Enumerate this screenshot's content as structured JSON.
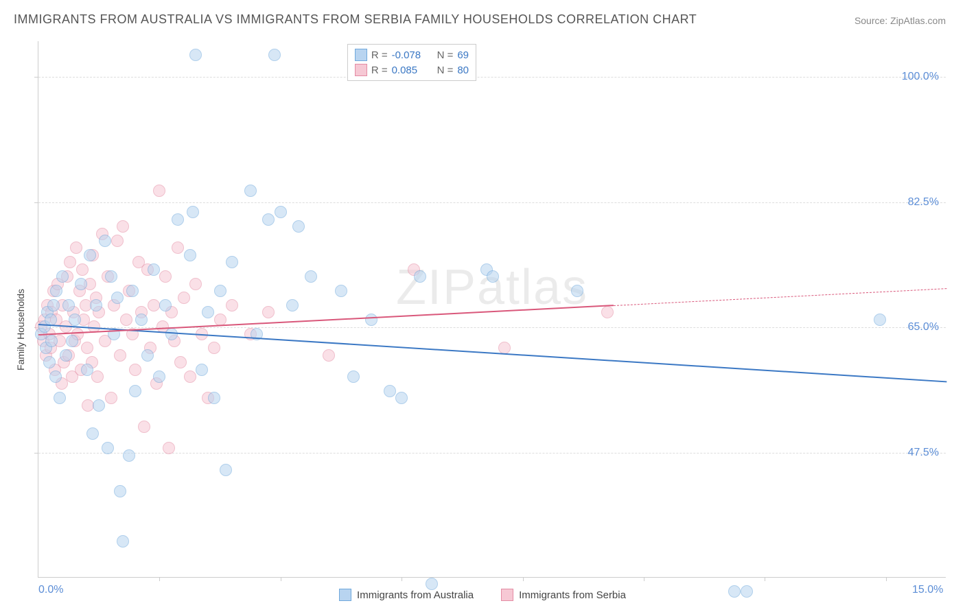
{
  "title": "IMMIGRANTS FROM AUSTRALIA VS IMMIGRANTS FROM SERBIA FAMILY HOUSEHOLDS CORRELATION CHART",
  "source": "Source: ZipAtlas.com",
  "watermark": "ZIPatlas",
  "ylabel": "Family Households",
  "chart": {
    "type": "scatter",
    "xlim": [
      0,
      15
    ],
    "ylim": [
      30,
      105
    ],
    "x_ticks": [
      0,
      15
    ],
    "x_tick_labels": [
      "0.0%",
      "15.0%"
    ],
    "x_minor_ticks": [
      2,
      4,
      6,
      8,
      10,
      12,
      14
    ],
    "y_ticks": [
      47.5,
      65.0,
      82.5,
      100.0
    ],
    "y_tick_labels": [
      "47.5%",
      "65.0%",
      "82.5%",
      "100.0%"
    ],
    "background_color": "#ffffff",
    "grid_color": "#dddddd",
    "axis_color": "#cccccc",
    "tick_label_color": "#5b8dd6",
    "title_color": "#555555",
    "marker_radius": 9,
    "marker_opacity": 0.55,
    "marker_border_width": 1.2
  },
  "series": [
    {
      "name": "Immigrants from Australia",
      "fill": "#b8d4f0",
      "stroke": "#6fa8dc",
      "line_color": "#3b78c4",
      "R": "-0.078",
      "N": "69",
      "trend": {
        "x1": 0.0,
        "y1": 65.5,
        "x2": 15.0,
        "y2": 57.5,
        "solid_until_x": 15.0
      },
      "points": [
        [
          0.05,
          64
        ],
        [
          0.1,
          65
        ],
        [
          0.12,
          62
        ],
        [
          0.15,
          67
        ],
        [
          0.18,
          60
        ],
        [
          0.2,
          66
        ],
        [
          0.22,
          63
        ],
        [
          0.25,
          68
        ],
        [
          0.28,
          58
        ],
        [
          0.3,
          70
        ],
        [
          0.35,
          55
        ],
        [
          0.4,
          72
        ],
        [
          0.45,
          61
        ],
        [
          0.5,
          68
        ],
        [
          0.55,
          63
        ],
        [
          0.6,
          66
        ],
        [
          0.7,
          71
        ],
        [
          0.8,
          59
        ],
        [
          0.85,
          75
        ],
        [
          0.9,
          50
        ],
        [
          0.95,
          68
        ],
        [
          1.0,
          54
        ],
        [
          1.1,
          77
        ],
        [
          1.15,
          48
        ],
        [
          1.2,
          72
        ],
        [
          1.25,
          64
        ],
        [
          1.3,
          69
        ],
        [
          1.35,
          42
        ],
        [
          1.4,
          35
        ],
        [
          1.5,
          47
        ],
        [
          1.55,
          70
        ],
        [
          1.6,
          56
        ],
        [
          1.7,
          66
        ],
        [
          1.8,
          61
        ],
        [
          1.9,
          73
        ],
        [
          2.0,
          58
        ],
        [
          2.1,
          68
        ],
        [
          2.2,
          64
        ],
        [
          2.3,
          80
        ],
        [
          2.5,
          75
        ],
        [
          2.55,
          81
        ],
        [
          2.6,
          103
        ],
        [
          2.7,
          59
        ],
        [
          2.8,
          67
        ],
        [
          2.9,
          55
        ],
        [
          3.0,
          70
        ],
        [
          3.1,
          45
        ],
        [
          3.2,
          74
        ],
        [
          3.5,
          84
        ],
        [
          3.6,
          64
        ],
        [
          3.8,
          80
        ],
        [
          3.9,
          103
        ],
        [
          4.0,
          81
        ],
        [
          4.2,
          68
        ],
        [
          4.3,
          79
        ],
        [
          4.5,
          72
        ],
        [
          5.0,
          70
        ],
        [
          5.2,
          58
        ],
        [
          5.5,
          66
        ],
        [
          5.8,
          56
        ],
        [
          6.0,
          55
        ],
        [
          6.3,
          72
        ],
        [
          6.5,
          29
        ],
        [
          7.4,
          73
        ],
        [
          7.5,
          72
        ],
        [
          8.9,
          70
        ],
        [
          11.5,
          28
        ],
        [
          11.7,
          28
        ],
        [
          13.9,
          66
        ]
      ]
    },
    {
      "name": "Immigrants from Serbia",
      "fill": "#f6c8d4",
      "stroke": "#e48ba3",
      "line_color": "#d9577a",
      "R": "0.085",
      "N": "80",
      "trend": {
        "x1": 0.0,
        "y1": 64.0,
        "x2": 15.0,
        "y2": 70.5,
        "solid_until_x": 9.5
      },
      "points": [
        [
          0.05,
          65
        ],
        [
          0.08,
          63
        ],
        [
          0.1,
          66
        ],
        [
          0.12,
          61
        ],
        [
          0.15,
          68
        ],
        [
          0.18,
          64
        ],
        [
          0.2,
          62
        ],
        [
          0.22,
          67
        ],
        [
          0.25,
          70
        ],
        [
          0.27,
          59
        ],
        [
          0.3,
          66
        ],
        [
          0.32,
          71
        ],
        [
          0.35,
          63
        ],
        [
          0.38,
          57
        ],
        [
          0.4,
          68
        ],
        [
          0.42,
          60
        ],
        [
          0.45,
          65
        ],
        [
          0.48,
          72
        ],
        [
          0.5,
          61
        ],
        [
          0.52,
          74
        ],
        [
          0.55,
          58
        ],
        [
          0.58,
          67
        ],
        [
          0.6,
          63
        ],
        [
          0.62,
          76
        ],
        [
          0.65,
          64
        ],
        [
          0.68,
          70
        ],
        [
          0.7,
          59
        ],
        [
          0.72,
          73
        ],
        [
          0.75,
          66
        ],
        [
          0.78,
          68
        ],
        [
          0.8,
          62
        ],
        [
          0.82,
          54
        ],
        [
          0.85,
          71
        ],
        [
          0.88,
          60
        ],
        [
          0.9,
          75
        ],
        [
          0.92,
          65
        ],
        [
          0.95,
          69
        ],
        [
          0.98,
          58
        ],
        [
          1.0,
          67
        ],
        [
          1.05,
          78
        ],
        [
          1.1,
          63
        ],
        [
          1.15,
          72
        ],
        [
          1.2,
          55
        ],
        [
          1.25,
          68
        ],
        [
          1.3,
          77
        ],
        [
          1.35,
          61
        ],
        [
          1.4,
          79
        ],
        [
          1.45,
          66
        ],
        [
          1.5,
          70
        ],
        [
          1.55,
          64
        ],
        [
          1.6,
          59
        ],
        [
          1.65,
          74
        ],
        [
          1.7,
          67
        ],
        [
          1.75,
          51
        ],
        [
          1.8,
          73
        ],
        [
          1.85,
          62
        ],
        [
          1.9,
          68
        ],
        [
          1.95,
          57
        ],
        [
          2.0,
          84
        ],
        [
          2.05,
          65
        ],
        [
          2.1,
          72
        ],
        [
          2.15,
          48
        ],
        [
          2.2,
          67
        ],
        [
          2.25,
          63
        ],
        [
          2.3,
          76
        ],
        [
          2.35,
          60
        ],
        [
          2.4,
          69
        ],
        [
          2.5,
          58
        ],
        [
          2.6,
          71
        ],
        [
          2.7,
          64
        ],
        [
          2.8,
          55
        ],
        [
          2.9,
          62
        ],
        [
          3.0,
          66
        ],
        [
          3.2,
          68
        ],
        [
          3.5,
          64
        ],
        [
          3.8,
          67
        ],
        [
          4.8,
          61
        ],
        [
          6.2,
          73
        ],
        [
          7.7,
          62
        ],
        [
          9.4,
          67
        ]
      ]
    }
  ],
  "stat_legend": {
    "label_R": "R =",
    "label_N": "N =",
    "value_color": "#3b78c4",
    "text_color": "#666666"
  }
}
